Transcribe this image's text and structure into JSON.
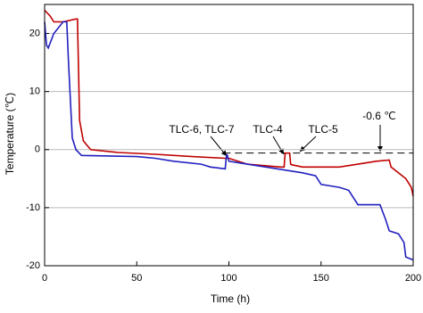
{
  "chart_data": {
    "type": "line",
    "xlabel": "Time (h)",
    "ylabel": "Temperature (℃)",
    "xlim": [
      0,
      200
    ],
    "ylim": [
      -20,
      25
    ],
    "xticks": [
      0,
      50,
      100,
      150,
      200
    ],
    "yticks": [
      -20,
      -10,
      0,
      10,
      20
    ],
    "grid": true,
    "series": [
      {
        "color": "#c00000",
        "x": [
          0,
          3,
          5,
          10,
          17,
          17.8,
          19,
          21,
          25,
          40,
          60,
          80,
          98,
          100,
          110,
          128,
          130,
          130.5,
          133,
          133.5,
          134,
          140,
          160,
          170,
          180,
          187,
          188,
          196,
          199,
          200
        ],
        "values": [
          24,
          23,
          22,
          22,
          22.5,
          22.5,
          5,
          1.5,
          0,
          -0.5,
          -0.8,
          -1.2,
          -1.5,
          -1.5,
          -2.5,
          -3,
          -3,
          -0.6,
          -0.6,
          -2.5,
          -2.6,
          -3,
          -3,
          -2.5,
          -2,
          -1.8,
          -3,
          -5,
          -6.5,
          -8
        ]
      },
      {
        "color": "#2020c0",
        "x": [
          0,
          1,
          2,
          5,
          10,
          12,
          13,
          15,
          17,
          20,
          50,
          60,
          70,
          85,
          90,
          98,
          98.5,
          99,
          100,
          110,
          120,
          130,
          140,
          147,
          150,
          160,
          165,
          170,
          182,
          185,
          187,
          192,
          195,
          196,
          200
        ],
        "values": [
          22,
          18,
          17.5,
          20,
          22,
          22,
          15,
          2,
          0,
          -1,
          -1.2,
          -1.5,
          -2,
          -2.5,
          -3,
          -3.3,
          -1.5,
          -0.8,
          -2,
          -2.5,
          -3,
          -3.5,
          -4,
          -4.5,
          -6,
          -6.5,
          -7,
          -9.5,
          -9.5,
          -12,
          -14,
          -14.5,
          -16,
          -18.5,
          -19
        ]
      }
    ],
    "reference_line": {
      "value": -0.6,
      "xrange": [
        97,
        200
      ],
      "label": "-0.6 ℃"
    },
    "annotations": [
      "TLC-6, TLC-7",
      "TLC-4",
      "TLC-5"
    ]
  }
}
